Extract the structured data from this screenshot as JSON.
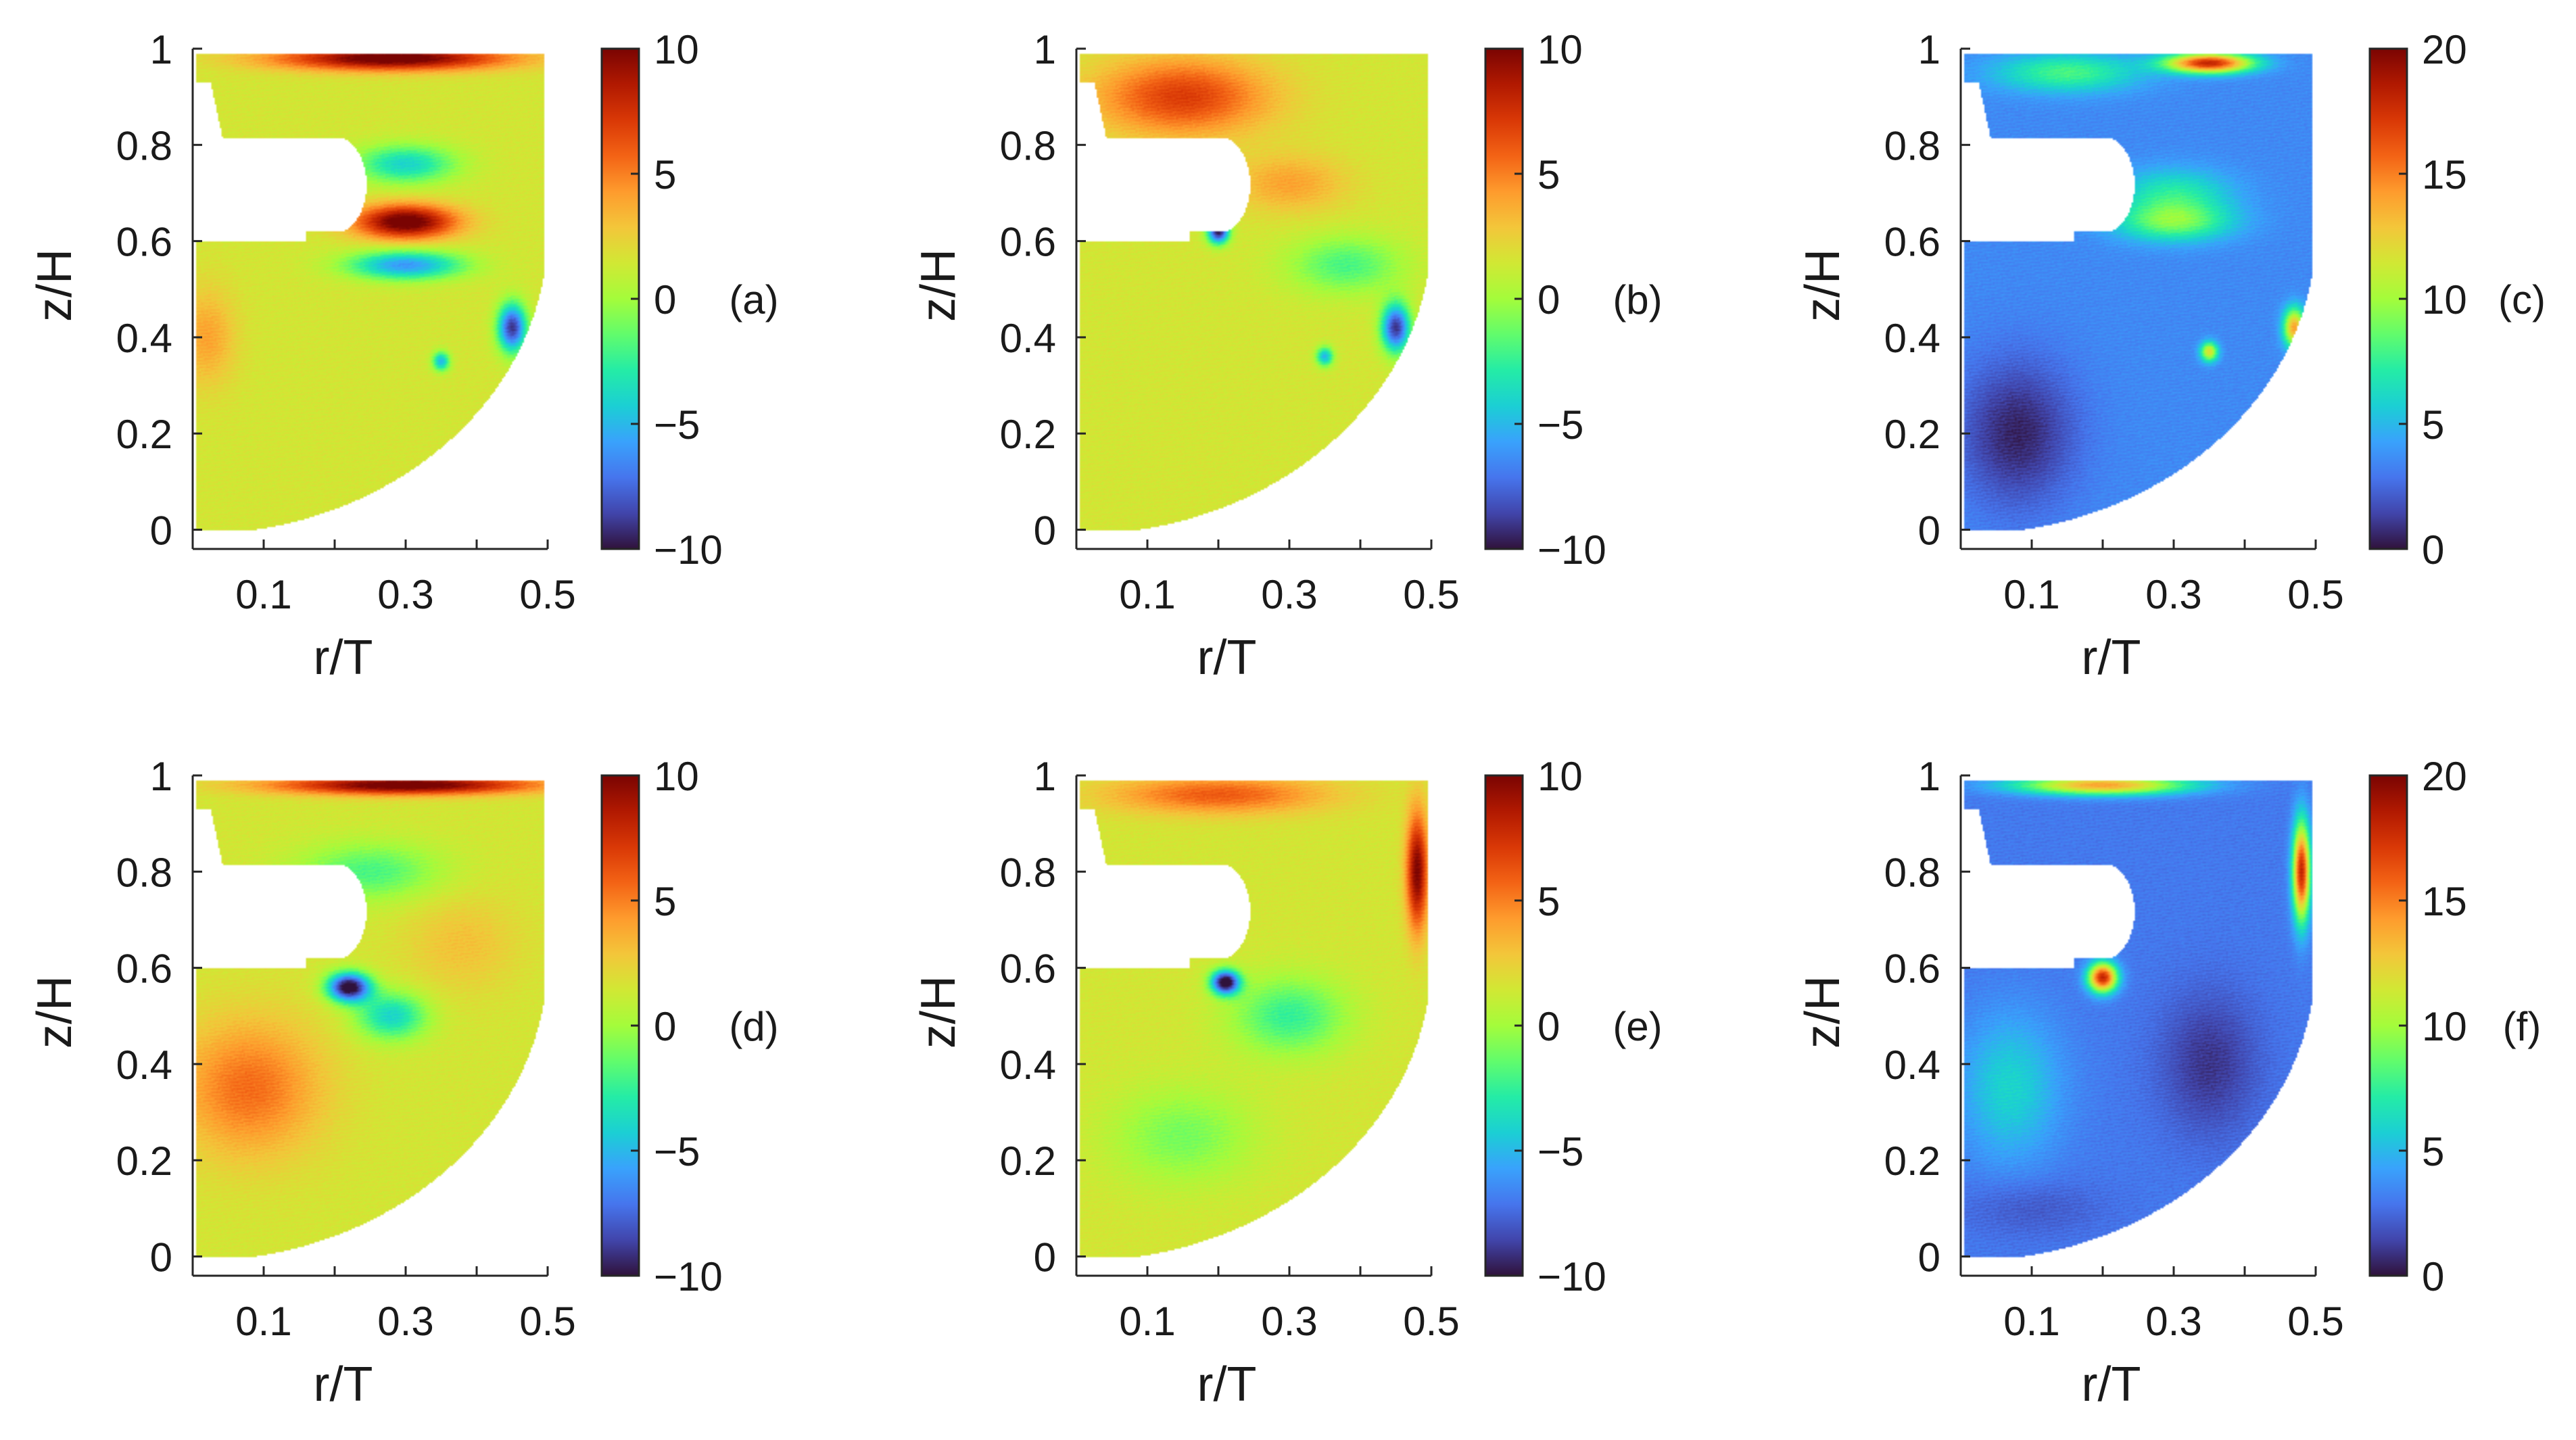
{
  "figure": {
    "panels": [
      "(a)",
      "(b)",
      "(c)",
      "(d)",
      "(e)",
      "(f)"
    ]
  },
  "colors": {
    "colormap": [
      "#30123b",
      "#4145ab",
      "#4675ed",
      "#39a2fc",
      "#1bcfd4",
      "#24eca6",
      "#61fc6c",
      "#a4fc3b",
      "#d1e834",
      "#f3c63a",
      "#fe9b2d",
      "#f36315",
      "#d93806",
      "#b11901",
      "#7a0402"
    ],
    "axis": "#262626",
    "background": "#ffffff"
  },
  "chart_data": [
    {
      "type": "heatmap",
      "panel": "(a)",
      "xlabel": "r/T",
      "ylabel": "z/H",
      "xticks": [
        0.1,
        0.3,
        0.5
      ],
      "yticks": [
        0,
        0.2,
        0.4,
        0.6,
        0.8,
        1
      ],
      "colorbar": {
        "ticks": [
          10,
          5,
          0,
          -5,
          -10
        ],
        "ticklabels": [
          "10",
          "5",
          "0",
          "−5",
          "−10"
        ],
        "clim": [
          -10,
          10
        ]
      },
      "base_value": 1.5,
      "features": [
        {
          "r": 0.28,
          "z": 0.98,
          "value": 11,
          "sx": 0.16,
          "sz": 0.025
        },
        {
          "r": 0.3,
          "z": 0.64,
          "value": 11,
          "sx": 0.07,
          "sz": 0.035
        },
        {
          "r": 0.3,
          "z": 0.76,
          "value": -4,
          "sx": 0.07,
          "sz": 0.04
        },
        {
          "r": 0.3,
          "z": 0.55,
          "value": -6,
          "sx": 0.08,
          "sz": 0.03
        },
        {
          "r": 0.02,
          "z": 0.4,
          "value": 4,
          "sx": 0.04,
          "sz": 0.1
        },
        {
          "r": 0.45,
          "z": 0.42,
          "value": -9,
          "sx": 0.02,
          "sz": 0.05
        },
        {
          "r": 0.35,
          "z": 0.35,
          "value": -5,
          "sx": 0.012,
          "sz": 0.02
        }
      ]
    },
    {
      "type": "heatmap",
      "panel": "(b)",
      "xlabel": "r/T",
      "ylabel": "z/H",
      "xticks": [
        0.1,
        0.3,
        0.5
      ],
      "yticks": [
        0,
        0.2,
        0.4,
        0.6,
        0.8,
        1
      ],
      "colorbar": {
        "ticks": [
          10,
          5,
          0,
          -5,
          -10
        ],
        "ticklabels": [
          "10",
          "5",
          "0",
          "−5",
          "−10"
        ],
        "clim": [
          -10,
          10
        ]
      },
      "base_value": 1.5,
      "features": [
        {
          "r": 0.15,
          "z": 0.9,
          "value": 7,
          "sx": 0.12,
          "sz": 0.08
        },
        {
          "r": 0.3,
          "z": 0.72,
          "value": 4,
          "sx": 0.08,
          "sz": 0.06
        },
        {
          "r": 0.2,
          "z": 0.62,
          "value": -10,
          "sx": 0.015,
          "sz": 0.025
        },
        {
          "r": 0.38,
          "z": 0.55,
          "value": -2,
          "sx": 0.08,
          "sz": 0.06
        },
        {
          "r": 0.45,
          "z": 0.42,
          "value": -9,
          "sx": 0.02,
          "sz": 0.05
        },
        {
          "r": 0.35,
          "z": 0.36,
          "value": -5,
          "sx": 0.012,
          "sz": 0.02
        }
      ]
    },
    {
      "type": "heatmap",
      "panel": "(c)",
      "xlabel": "r/T",
      "ylabel": "z/H",
      "xticks": [
        0.1,
        0.3,
        0.5
      ],
      "yticks": [
        0,
        0.2,
        0.4,
        0.6,
        0.8,
        1
      ],
      "colorbar": {
        "ticks": [
          20,
          15,
          10,
          5,
          0
        ],
        "ticklabels": [
          "20",
          "15",
          "10",
          "5",
          "0"
        ],
        "clim": [
          0,
          20
        ]
      },
      "base_value": 3.5,
      "features": [
        {
          "r": 0.35,
          "z": 0.97,
          "value": 18,
          "sx": 0.06,
          "sz": 0.02
        },
        {
          "r": 0.15,
          "z": 0.95,
          "value": 8,
          "sx": 0.1,
          "sz": 0.04
        },
        {
          "r": 0.3,
          "z": 0.64,
          "value": 9,
          "sx": 0.08,
          "sz": 0.04
        },
        {
          "r": 0.3,
          "z": 0.7,
          "value": 7,
          "sx": 0.08,
          "sz": 0.05
        },
        {
          "r": 0.08,
          "z": 0.2,
          "value": 0.5,
          "sx": 0.08,
          "sz": 0.15
        },
        {
          "r": 0.47,
          "z": 0.42,
          "value": 14,
          "sx": 0.015,
          "sz": 0.04
        },
        {
          "r": 0.35,
          "z": 0.37,
          "value": 12,
          "sx": 0.012,
          "sz": 0.02
        }
      ]
    },
    {
      "type": "heatmap",
      "panel": "(d)",
      "xlabel": "r/T",
      "ylabel": "z/H",
      "xticks": [
        0.1,
        0.3,
        0.5
      ],
      "yticks": [
        0,
        0.2,
        0.4,
        0.6,
        0.8,
        1
      ],
      "colorbar": {
        "ticks": [
          10,
          5,
          0,
          -5,
          -10
        ],
        "ticklabels": [
          "10",
          "5",
          "0",
          "−5",
          "−10"
        ],
        "clim": [
          -10,
          10
        ]
      },
      "base_value": 1.5,
      "features": [
        {
          "r": 0.3,
          "z": 0.98,
          "value": 11,
          "sx": 0.18,
          "sz": 0.02
        },
        {
          "r": 0.08,
          "z": 0.35,
          "value": 5.5,
          "sx": 0.1,
          "sz": 0.14
        },
        {
          "r": 0.22,
          "z": 0.56,
          "value": -11,
          "sx": 0.03,
          "sz": 0.03
        },
        {
          "r": 0.28,
          "z": 0.5,
          "value": -4,
          "sx": 0.05,
          "sz": 0.05
        },
        {
          "r": 0.25,
          "z": 0.8,
          "value": -2,
          "sx": 0.1,
          "sz": 0.06
        },
        {
          "r": 0.38,
          "z": 0.65,
          "value": 3,
          "sx": 0.08,
          "sz": 0.1
        }
      ]
    },
    {
      "type": "heatmap",
      "panel": "(e)",
      "xlabel": "r/T",
      "ylabel": "z/H",
      "xticks": [
        0.1,
        0.3,
        0.5
      ],
      "yticks": [
        0,
        0.2,
        0.4,
        0.6,
        0.8,
        1
      ],
      "colorbar": {
        "ticks": [
          10,
          5,
          0,
          -5,
          -10
        ],
        "ticklabels": [
          "10",
          "5",
          "0",
          "−5",
          "−10"
        ],
        "clim": [
          -10,
          10
        ]
      },
      "base_value": 1.5,
      "features": [
        {
          "r": 0.2,
          "z": 0.96,
          "value": 6,
          "sx": 0.15,
          "sz": 0.04
        },
        {
          "r": 0.48,
          "z": 0.8,
          "value": 10,
          "sx": 0.015,
          "sz": 0.12
        },
        {
          "r": 0.21,
          "z": 0.57,
          "value": -11,
          "sx": 0.02,
          "sz": 0.025
        },
        {
          "r": 0.3,
          "z": 0.5,
          "value": -2.5,
          "sx": 0.08,
          "sz": 0.08
        },
        {
          "r": 0.15,
          "z": 0.25,
          "value": -1,
          "sx": 0.1,
          "sz": 0.1
        }
      ]
    },
    {
      "type": "heatmap",
      "panel": "(f)",
      "xlabel": "r/T",
      "ylabel": "z/H",
      "xticks": [
        0.1,
        0.3,
        0.5
      ],
      "yticks": [
        0,
        0.2,
        0.4,
        0.6,
        0.8,
        1
      ],
      "colorbar": {
        "ticks": [
          20,
          15,
          10,
          5,
          0
        ],
        "ticklabels": [
          "20",
          "15",
          "10",
          "5",
          "0"
        ],
        "clim": [
          0,
          20
        ]
      },
      "base_value": 3,
      "features": [
        {
          "r": 0.2,
          "z": 0.98,
          "value": 14,
          "sx": 0.12,
          "sz": 0.02
        },
        {
          "r": 0.48,
          "z": 0.8,
          "value": 18,
          "sx": 0.012,
          "sz": 0.1
        },
        {
          "r": 0.2,
          "z": 0.58,
          "value": 18,
          "sx": 0.02,
          "sz": 0.03
        },
        {
          "r": 0.07,
          "z": 0.35,
          "value": 6,
          "sx": 0.07,
          "sz": 0.15
        },
        {
          "r": 0.35,
          "z": 0.4,
          "value": 1,
          "sx": 0.07,
          "sz": 0.15
        },
        {
          "r": 0.1,
          "z": 0.1,
          "value": 2,
          "sx": 0.1,
          "sz": 0.06
        }
      ]
    }
  ]
}
